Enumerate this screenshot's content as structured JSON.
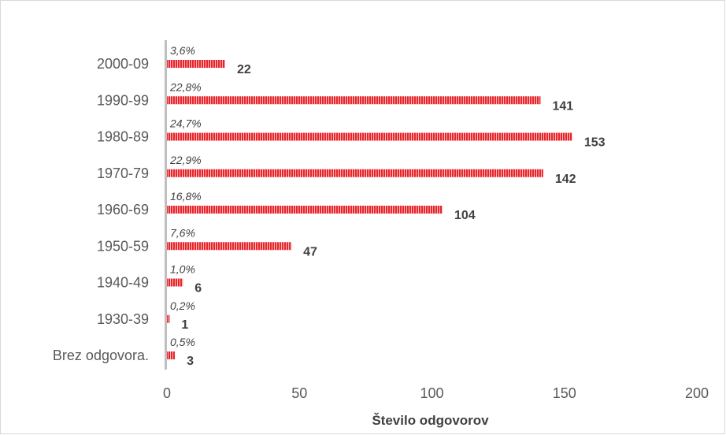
{
  "chart_data": {
    "type": "bar",
    "orientation": "horizontal",
    "categories": [
      "2000-09",
      "1990-99",
      "1980-89",
      "1970-79",
      "1960-69",
      "1950-59",
      "1940-49",
      "1930-39",
      "Brez odgovora."
    ],
    "values": [
      22,
      141,
      153,
      142,
      104,
      47,
      6,
      1,
      3
    ],
    "percent_labels": [
      "3,6%",
      "22,8%",
      "24,7%",
      "22,9%",
      "16,8%",
      "7,6%",
      "1,0%",
      "0,2%",
      "0,5%"
    ],
    "title": "",
    "xlabel": "Število odgovorov",
    "ylabel": "",
    "xlim": [
      0,
      200
    ],
    "xticks": [
      0,
      50,
      100,
      150,
      200
    ],
    "grid": false,
    "legend": "none",
    "bar_color": "#e8252b",
    "bar_stripe_color": "#f7b9bb",
    "axis_color": "#bfbfbf"
  }
}
